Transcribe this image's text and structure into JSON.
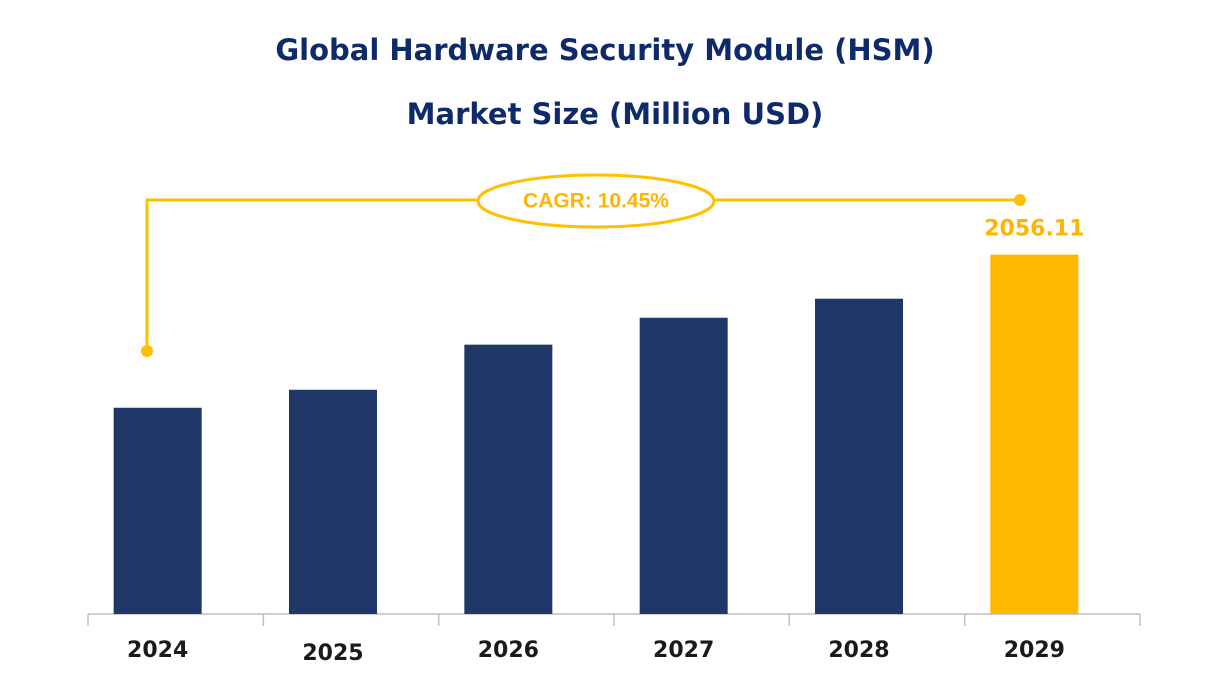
{
  "chart_data": {
    "type": "bar",
    "title": [
      "Global  Hardware Security Module (HSM)",
      "Market Size (Million USD)"
    ],
    "annotation": "CAGR: 10.45%",
    "categories": [
      "2024",
      "2025",
      "2026",
      "2027",
      "2028",
      "2029"
    ],
    "values": [
      1180,
      1283,
      1541,
      1695,
      1804,
      2056.11
    ],
    "colors": [
      "#1f3868",
      "#1f3868",
      "#1f3868",
      "#1f3868",
      "#1f3868",
      "#ffb800"
    ],
    "labeled": [
      5
    ],
    "ylim": [
      0,
      2300
    ]
  }
}
